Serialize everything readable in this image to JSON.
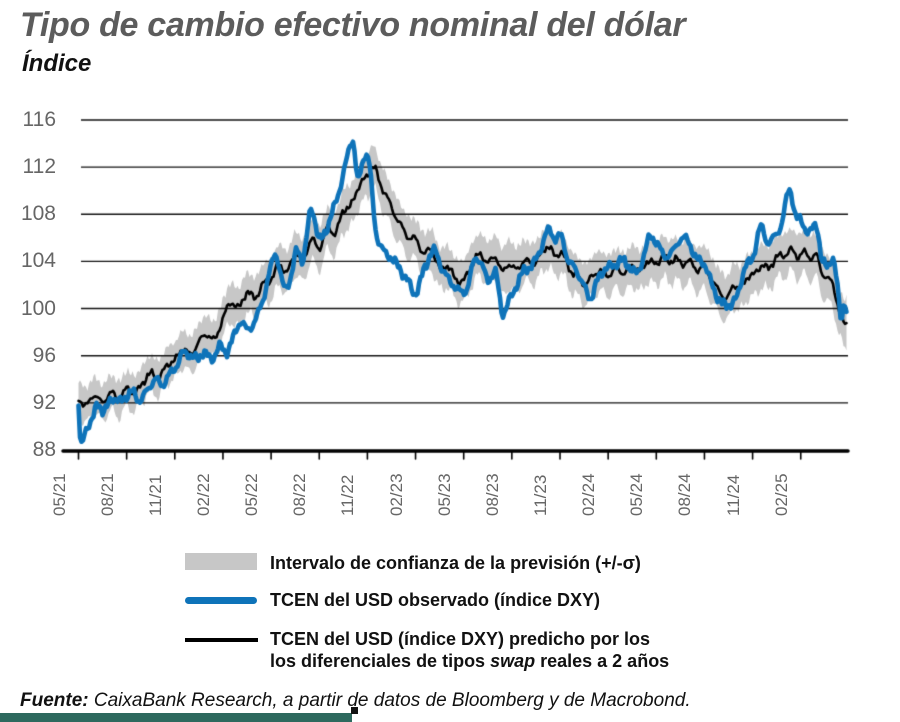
{
  "title": "Tipo de cambio efectivo nominal del dólar",
  "subtitle": "Índice",
  "source": {
    "label": "Fuente:",
    "text": " CaixaBank Research, a partir de datos de Bloomberg y de Macrobond."
  },
  "colors": {
    "observed_blue": "#0e73b9",
    "predicted_black": "#000000",
    "band_gray": "#c7c7c7",
    "grid": "#111111",
    "axis_text": "#666666",
    "title_gray": "#5c5c5c",
    "footer_bar_teal": "#2e695e"
  },
  "legend": {
    "items": [
      {
        "type": "band",
        "color": "#c7c7c7",
        "label": "Intervalo de confianza de la previsión (+/-σ)"
      },
      {
        "type": "line",
        "color": "#0e73b9",
        "label": "TCEN del USD observado (índice DXY)"
      },
      {
        "type": "line",
        "color": "#000000",
        "label_line1": "TCEN del USD (índice DXY) predicho por los",
        "line2_pre": "los diferenciales de tipos ",
        "line2_italic": "swap",
        "line2_post": " reales a 2 años"
      }
    ]
  },
  "chart_data": {
    "type": "line",
    "title": "Tipo de cambio efectivo nominal del dólar",
    "ylabel": "Índice",
    "xlabel": "",
    "grid": true,
    "legend_position": "bottom",
    "ylim": [
      88,
      116
    ],
    "y_ticks": [
      116,
      112,
      108,
      104,
      100,
      96,
      92,
      88
    ],
    "x_tick_labels": [
      "05/21",
      "08/21",
      "11/21",
      "02/22",
      "05/22",
      "08/22",
      "11/22",
      "02/23",
      "05/23",
      "08/23",
      "11/23",
      "02/24",
      "05/24",
      "08/24",
      "11/24",
      "02/25"
    ],
    "x_unit": "months_since_2021-05",
    "x_range_months": [
      0,
      47.9
    ],
    "series": [
      {
        "name": "TCEN del USD observado (índice DXY)",
        "color": "#0e73b9",
        "points": [
          [
            0,
            92.0
          ],
          [
            0.12,
            88.4
          ],
          [
            0.5,
            89.9
          ],
          [
            0.9,
            90.7
          ],
          [
            1.2,
            91.9
          ],
          [
            1.6,
            91.3
          ],
          [
            2.1,
            92.4
          ],
          [
            2.6,
            92.1
          ],
          [
            3.0,
            92.6
          ],
          [
            3.4,
            92.9
          ],
          [
            3.8,
            92.2
          ],
          [
            4.3,
            93.1
          ],
          [
            4.8,
            94.0
          ],
          [
            5.2,
            93.5
          ],
          [
            5.6,
            94.3
          ],
          [
            6.0,
            94.9
          ],
          [
            6.5,
            96.2
          ],
          [
            7.0,
            96.0
          ],
          [
            7.4,
            95.7
          ],
          [
            7.8,
            96.3
          ],
          [
            8.3,
            95.7
          ],
          [
            8.8,
            96.8
          ],
          [
            9.2,
            96.3
          ],
          [
            9.6,
            97.4
          ],
          [
            10.1,
            98.9
          ],
          [
            10.5,
            98.2
          ],
          [
            11.0,
            99.0
          ],
          [
            11.5,
            100.8
          ],
          [
            12.0,
            103.5
          ],
          [
            12.3,
            104.6
          ],
          [
            12.8,
            101.8
          ],
          [
            13.2,
            102.6
          ],
          [
            13.6,
            104.9
          ],
          [
            14.0,
            104.3
          ],
          [
            14.5,
            108.4
          ],
          [
            15.0,
            105.9
          ],
          [
            15.4,
            106.6
          ],
          [
            15.8,
            108.1
          ],
          [
            16.2,
            109.8
          ],
          [
            16.6,
            112.0
          ],
          [
            17.1,
            114.3
          ],
          [
            17.4,
            110.9
          ],
          [
            17.8,
            112.9
          ],
          [
            18.1,
            112.4
          ],
          [
            18.5,
            106.8
          ],
          [
            19.0,
            104.9
          ],
          [
            19.5,
            104.3
          ],
          [
            20.0,
            103.4
          ],
          [
            20.5,
            102.4
          ],
          [
            21.0,
            101.3
          ],
          [
            21.6,
            103.6
          ],
          [
            22.2,
            104.9
          ],
          [
            22.7,
            103.2
          ],
          [
            23.2,
            102.3
          ],
          [
            23.7,
            101.5
          ],
          [
            24.2,
            101.7
          ],
          [
            24.7,
            104.2
          ],
          [
            25.1,
            103.8
          ],
          [
            25.5,
            102.4
          ],
          [
            26.0,
            103.0
          ],
          [
            26.4,
            99.7
          ],
          [
            26.8,
            100.6
          ],
          [
            27.3,
            102.0
          ],
          [
            27.8,
            103.3
          ],
          [
            28.3,
            103.7
          ],
          [
            28.8,
            105.1
          ],
          [
            29.3,
            106.7
          ],
          [
            29.7,
            105.9
          ],
          [
            30.1,
            106.1
          ],
          [
            30.5,
            104.1
          ],
          [
            31.0,
            103.3
          ],
          [
            31.5,
            101.9
          ],
          [
            31.9,
            100.9
          ],
          [
            32.3,
            102.3
          ],
          [
            32.8,
            103.4
          ],
          [
            33.3,
            103.6
          ],
          [
            33.8,
            104.1
          ],
          [
            34.3,
            103.6
          ],
          [
            34.8,
            103.0
          ],
          [
            35.2,
            104.4
          ],
          [
            35.6,
            106.1
          ],
          [
            36.0,
            105.6
          ],
          [
            36.5,
            104.5
          ],
          [
            37.0,
            104.8
          ],
          [
            37.5,
            105.9
          ],
          [
            38.0,
            105.7
          ],
          [
            38.5,
            104.2
          ],
          [
            39.0,
            103.8
          ],
          [
            39.5,
            101.9
          ],
          [
            40.0,
            100.6
          ],
          [
            40.4,
            100.3
          ],
          [
            41.0,
            100.9
          ],
          [
            41.5,
            103.4
          ],
          [
            42.0,
            104.3
          ],
          [
            42.5,
            106.9
          ],
          [
            42.9,
            105.7
          ],
          [
            43.3,
            106.0
          ],
          [
            43.8,
            107.2
          ],
          [
            44.3,
            110.1
          ],
          [
            44.7,
            107.8
          ],
          [
            45.0,
            107.5
          ],
          [
            45.5,
            106.4
          ],
          [
            46.0,
            107.1
          ],
          [
            46.3,
            104.1
          ],
          [
            46.7,
            103.7
          ],
          [
            47.0,
            104.2
          ],
          [
            47.3,
            101.8
          ],
          [
            47.5,
            99.3
          ],
          [
            47.7,
            100.4
          ],
          [
            47.9,
            99.6
          ]
        ]
      },
      {
        "name": "TCEN del USD (índice DXY) predicho por los diferenciales de tipos swap reales a 2 años",
        "color": "#000000",
        "points": [
          [
            0,
            92.3
          ],
          [
            0.5,
            91.8
          ],
          [
            1,
            92.7
          ],
          [
            1.5,
            92.0
          ],
          [
            2,
            92.9
          ],
          [
            2.5,
            92.3
          ],
          [
            3,
            93.2
          ],
          [
            3.5,
            92.8
          ],
          [
            4,
            93.7
          ],
          [
            4.5,
            94.5
          ],
          [
            5,
            94.1
          ],
          [
            5.5,
            95.2
          ],
          [
            6,
            95.6
          ],
          [
            6.5,
            96.6
          ],
          [
            7,
            96.1
          ],
          [
            7.5,
            97.2
          ],
          [
            8,
            97.8
          ],
          [
            8.5,
            97.4
          ],
          [
            9,
            99.2
          ],
          [
            9.5,
            100.5
          ],
          [
            10,
            100.1
          ],
          [
            10.5,
            101.4
          ],
          [
            11,
            100.9
          ],
          [
            11.5,
            102.1
          ],
          [
            12,
            102.5
          ],
          [
            12.5,
            103.7
          ],
          [
            13,
            103.1
          ],
          [
            13.5,
            104.7
          ],
          [
            14,
            104.1
          ],
          [
            14.5,
            105.9
          ],
          [
            15,
            105.1
          ],
          [
            15.5,
            106.8
          ],
          [
            16,
            106.4
          ],
          [
            16.5,
            108.3
          ],
          [
            17,
            108.8
          ],
          [
            17.5,
            110.5
          ],
          [
            18,
            111.2
          ],
          [
            18.4,
            112.1
          ],
          [
            18.8,
            110.5
          ],
          [
            19.2,
            109.6
          ],
          [
            19.6,
            108.2
          ],
          [
            20,
            107.3
          ],
          [
            20.5,
            106.1
          ],
          [
            21,
            105.9
          ],
          [
            21.5,
            104.7
          ],
          [
            22,
            105.0
          ],
          [
            22.5,
            103.4
          ],
          [
            23,
            103.6
          ],
          [
            23.5,
            102.5
          ],
          [
            24,
            102.4
          ],
          [
            24.5,
            103.7
          ],
          [
            25,
            104.6
          ],
          [
            25.5,
            103.9
          ],
          [
            26,
            104.4
          ],
          [
            26.4,
            103.1
          ],
          [
            26.8,
            103.8
          ],
          [
            27.3,
            103.3
          ],
          [
            27.8,
            104.1
          ],
          [
            28.3,
            103.8
          ],
          [
            28.8,
            104.6
          ],
          [
            29.3,
            105.3
          ],
          [
            29.7,
            104.4
          ],
          [
            30.1,
            104.8
          ],
          [
            30.6,
            103.3
          ],
          [
            31,
            102.9
          ],
          [
            31.5,
            102.1
          ],
          [
            32,
            102.7
          ],
          [
            32.5,
            103.2
          ],
          [
            33,
            102.8
          ],
          [
            33.5,
            103.4
          ],
          [
            34,
            103.0
          ],
          [
            34.5,
            103.7
          ],
          [
            35,
            103.2
          ],
          [
            35.5,
            104.1
          ],
          [
            36,
            103.7
          ],
          [
            36.4,
            104.5
          ],
          [
            36.8,
            103.9
          ],
          [
            37.2,
            104.3
          ],
          [
            37.6,
            103.7
          ],
          [
            38,
            104.1
          ],
          [
            38.5,
            103.3
          ],
          [
            39,
            103.5
          ],
          [
            39.5,
            102.3
          ],
          [
            40,
            101.4
          ],
          [
            40.4,
            100.8
          ],
          [
            40.8,
            102.0
          ],
          [
            41.2,
            101.7
          ],
          [
            41.7,
            102.7
          ],
          [
            42.1,
            102.9
          ],
          [
            42.6,
            103.7
          ],
          [
            43,
            103.4
          ],
          [
            43.5,
            104.4
          ],
          [
            44,
            104.5
          ],
          [
            44.4,
            105.0
          ],
          [
            44.8,
            104.4
          ],
          [
            45.2,
            104.8
          ],
          [
            45.6,
            104.3
          ],
          [
            46,
            104.5
          ],
          [
            46.3,
            103.1
          ],
          [
            46.7,
            102.5
          ],
          [
            47,
            102.1
          ],
          [
            47.3,
            100.3
          ],
          [
            47.6,
            99.0
          ],
          [
            47.9,
            98.7
          ]
        ]
      }
    ],
    "band": {
      "name": "Intervalo de confianza de la previsión (+/-σ)",
      "around_series": "TCEN del USD (índice DXY) predicho",
      "color": "#c7c7c7",
      "halfwidth_points": [
        [
          0,
          1.5
        ],
        [
          5,
          1.5
        ],
        [
          9,
          1.6
        ],
        [
          13,
          1.8
        ],
        [
          18,
          1.8
        ],
        [
          21,
          1.7
        ],
        [
          26,
          1.8
        ],
        [
          26.6,
          2.1
        ],
        [
          28,
          1.7
        ],
        [
          34,
          1.7
        ],
        [
          40,
          1.9
        ],
        [
          44,
          1.8
        ],
        [
          46,
          1.9
        ],
        [
          47.9,
          2.1
        ]
      ]
    }
  }
}
